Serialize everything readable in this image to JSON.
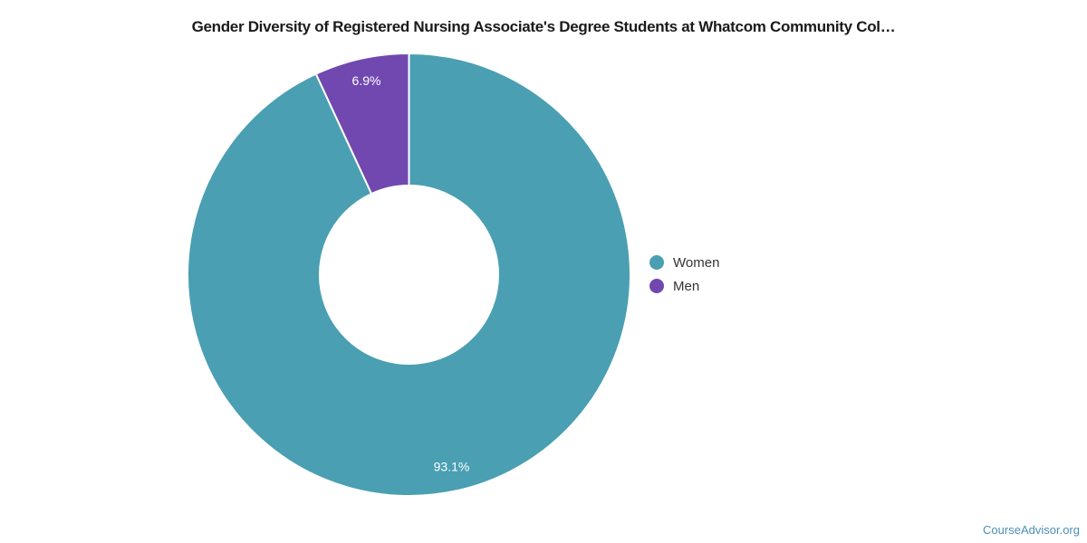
{
  "chart_data": {
    "type": "pie",
    "subtype": "donut",
    "title": "Gender Diversity of Registered Nursing Associate's Degree Students at Whatcom Community Col…",
    "labels": [
      "Women",
      "Men"
    ],
    "values": [
      93.1,
      6.9
    ],
    "value_labels": [
      "93.1%",
      "6.9%"
    ],
    "colors": [
      "#4A9FB2",
      "#7148AF"
    ],
    "slice_label_color": "#ffffff",
    "legend_position": "right",
    "start_angle_deg": 0,
    "direction": "clockwise",
    "background": "#ffffff"
  },
  "watermark": {
    "text": "CourseAdvisor.org",
    "color": "#4A90BA"
  }
}
